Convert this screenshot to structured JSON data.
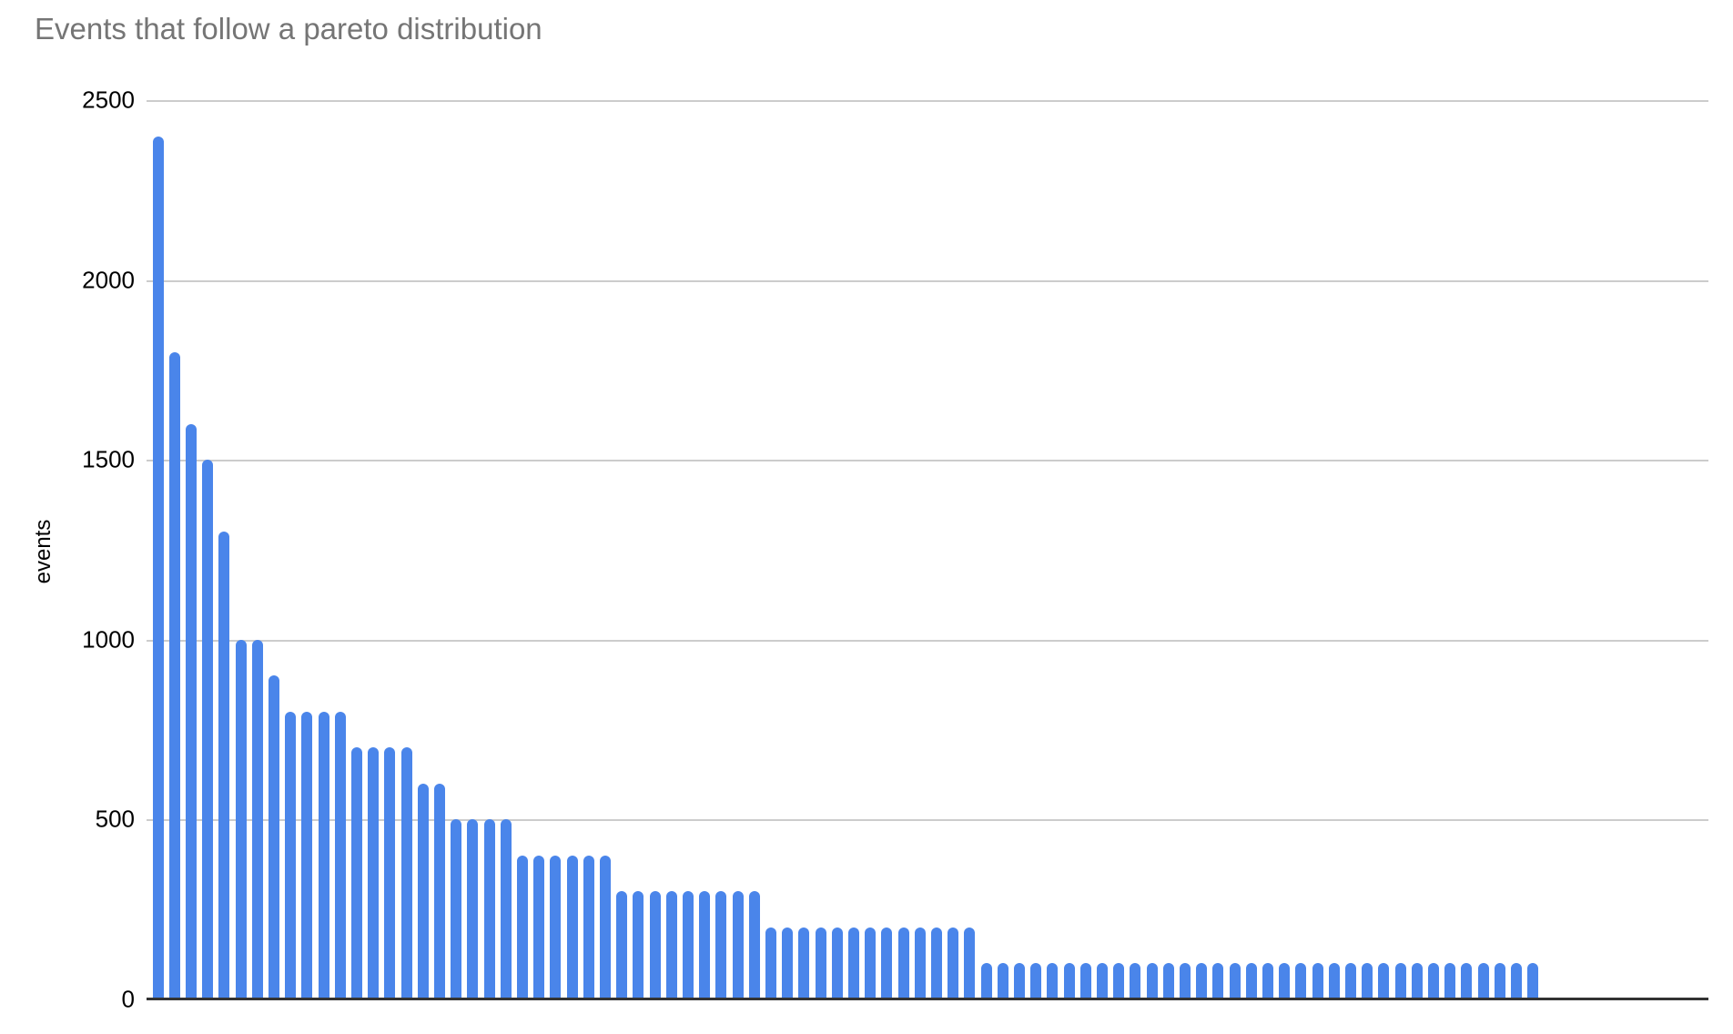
{
  "title": "Events that follow a pareto distribution",
  "colors": {
    "bar": "#4a85ea",
    "gridline": "#cccccc",
    "axis_line": "#333333",
    "title_text": "#757575",
    "tick_text": "#000000",
    "background": "#ffffff"
  },
  "chart_data": {
    "type": "bar",
    "title": "Events that follow a pareto distribution",
    "xlabel": "",
    "ylabel": "events",
    "ylim": [
      0,
      2500
    ],
    "y_ticks": [
      2500,
      2000,
      1500,
      1000,
      500,
      0
    ],
    "grid": true,
    "legend": false,
    "x_tick_labels_visible": false,
    "values": [
      2400,
      1800,
      1600,
      1500,
      1300,
      1000,
      1000,
      900,
      800,
      800,
      800,
      800,
      700,
      700,
      700,
      700,
      600,
      600,
      500,
      500,
      500,
      500,
      400,
      400,
      400,
      400,
      400,
      400,
      300,
      300,
      300,
      300,
      300,
      300,
      300,
      300,
      300,
      200,
      200,
      200,
      200,
      200,
      200,
      200,
      200,
      200,
      200,
      200,
      200,
      200,
      100,
      100,
      100,
      100,
      100,
      100,
      100,
      100,
      100,
      100,
      100,
      100,
      100,
      100,
      100,
      100,
      100,
      100,
      100,
      100,
      100,
      100,
      100,
      100,
      100,
      100,
      100,
      100,
      100,
      100,
      100,
      100,
      100,
      100
    ]
  }
}
